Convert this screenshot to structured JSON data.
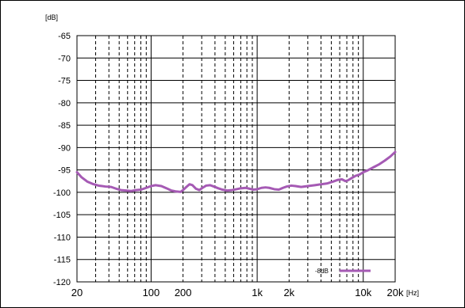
{
  "chart_data": {
    "type": "line",
    "xscale": "log",
    "xlim": [
      20,
      20000
    ],
    "ylim": [
      -120,
      -65
    ],
    "ylabel": "[dB]",
    "xlabel": "[Hz]",
    "grid": true,
    "legend_position": "bottom-right",
    "x_ticks": [
      {
        "value": 20,
        "label": "20"
      },
      {
        "value": 100,
        "label": "100"
      },
      {
        "value": 200,
        "label": "200"
      },
      {
        "value": 1000,
        "label": "1k"
      },
      {
        "value": 2000,
        "label": "2k"
      },
      {
        "value": 10000,
        "label": "10k"
      },
      {
        "value": 20000,
        "label": "20k"
      }
    ],
    "y_ticks": [
      -65,
      -70,
      -75,
      -80,
      -85,
      -90,
      -95,
      -100,
      -105,
      -110,
      -115,
      -120
    ],
    "series": [
      {
        "name": "-8dB",
        "color": "#a55ab4",
        "points": [
          [
            20,
            -95.5
          ],
          [
            22,
            -96.6
          ],
          [
            25,
            -97.6
          ],
          [
            28,
            -98.1
          ],
          [
            32,
            -98.5
          ],
          [
            37,
            -98.7
          ],
          [
            42,
            -98.8
          ],
          [
            47,
            -99.2
          ],
          [
            52,
            -99.5
          ],
          [
            58,
            -99.6
          ],
          [
            65,
            -99.7
          ],
          [
            72,
            -99.5
          ],
          [
            80,
            -99.4
          ],
          [
            90,
            -99.0
          ],
          [
            100,
            -98.6
          ],
          [
            110,
            -98.4
          ],
          [
            125,
            -98.6
          ],
          [
            140,
            -99.1
          ],
          [
            155,
            -99.6
          ],
          [
            170,
            -99.8
          ],
          [
            190,
            -99.9
          ],
          [
            200,
            -99.5
          ],
          [
            215,
            -98.8
          ],
          [
            230,
            -98.2
          ],
          [
            245,
            -98.4
          ],
          [
            265,
            -99.2
          ],
          [
            285,
            -99.5
          ],
          [
            305,
            -99.0
          ],
          [
            330,
            -98.5
          ],
          [
            360,
            -98.4
          ],
          [
            390,
            -98.7
          ],
          [
            430,
            -99.1
          ],
          [
            470,
            -99.4
          ],
          [
            520,
            -99.6
          ],
          [
            580,
            -99.5
          ],
          [
            640,
            -99.3
          ],
          [
            700,
            -99.1
          ],
          [
            780,
            -99.0
          ],
          [
            850,
            -99.2
          ],
          [
            920,
            -99.4
          ],
          [
            1000,
            -99.3
          ],
          [
            1100,
            -99.0
          ],
          [
            1200,
            -98.9
          ],
          [
            1300,
            -99.0
          ],
          [
            1450,
            -99.3
          ],
          [
            1600,
            -99.4
          ],
          [
            1750,
            -99.0
          ],
          [
            1900,
            -98.7
          ],
          [
            2100,
            -98.5
          ],
          [
            2300,
            -98.6
          ],
          [
            2600,
            -98.8
          ],
          [
            3000,
            -98.6
          ],
          [
            3500,
            -98.4
          ],
          [
            4000,
            -98.2
          ],
          [
            4600,
            -98.0
          ],
          [
            5200,
            -97.6
          ],
          [
            5800,
            -97.2
          ],
          [
            6300,
            -97.1
          ],
          [
            6800,
            -97.5
          ],
          [
            7200,
            -97.3
          ],
          [
            7800,
            -96.8
          ],
          [
            8500,
            -96.3
          ],
          [
            9300,
            -96.0
          ],
          [
            10000,
            -95.5
          ],
          [
            11000,
            -95.1
          ],
          [
            12500,
            -94.4
          ],
          [
            14000,
            -93.8
          ],
          [
            16000,
            -92.9
          ],
          [
            18000,
            -92.0
          ],
          [
            20000,
            -91.0
          ]
        ]
      }
    ]
  }
}
